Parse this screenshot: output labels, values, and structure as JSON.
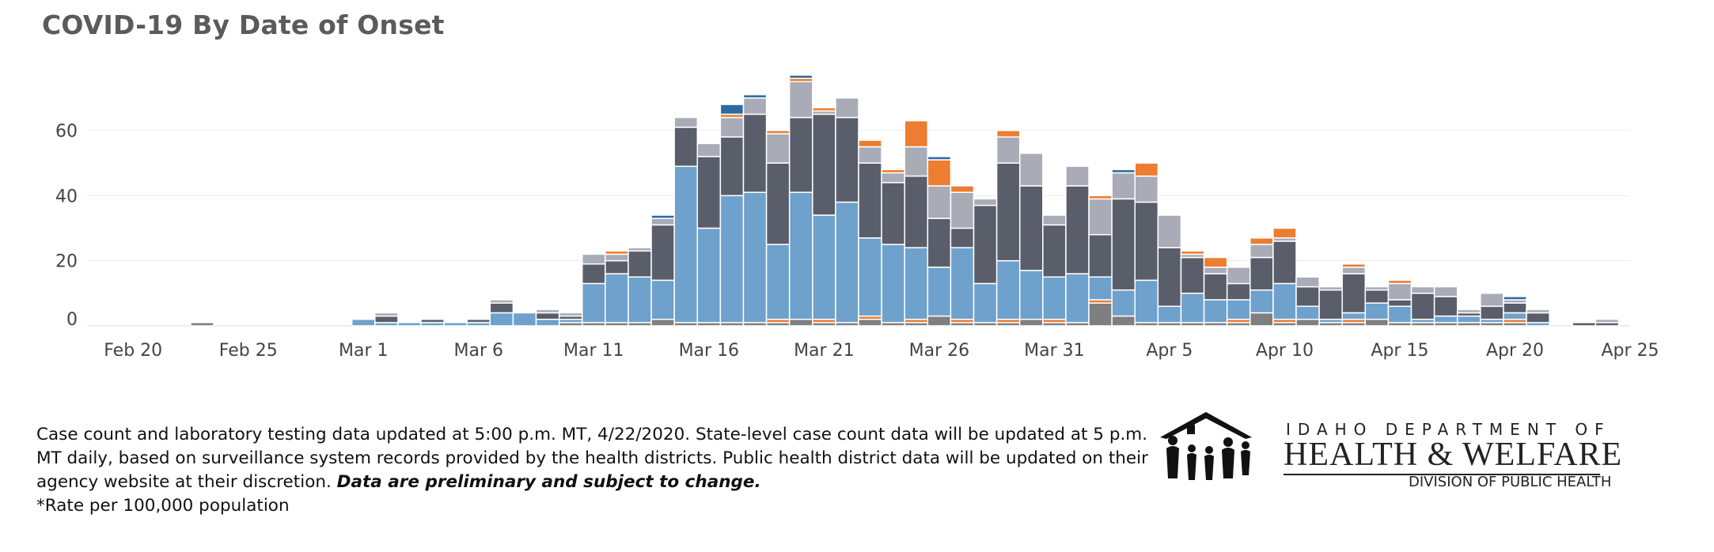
{
  "title": "COVID-19 By Date of Onset",
  "footnote": {
    "text": "Case count and laboratory testing data updated at 5:00 p.m. MT, 4/22/2020. State-level case count data will be updated at 5 p.m. MT daily, based on surveillance system records provided by the health districts. Public health district data will be updated on their agency website at their discretion.",
    "emphasis": "Data are preliminary and subject to change.",
    "rate_note": "*Rate per 100,000 population"
  },
  "logo": {
    "line1": "IDAHO DEPARTMENT OF",
    "line2": "HEALTH & WELFARE",
    "line3": "DIVISION OF PUBLIC HEALTH",
    "icon": "family-house-icon"
  },
  "chart_data": {
    "type": "bar",
    "stacked": true,
    "title": "COVID-19 By Date of Onset",
    "xlabel": "",
    "ylabel": "",
    "ylim": [
      0,
      75
    ],
    "grid": true,
    "x_start": "2020-02-18",
    "x_end": "2020-04-25",
    "x_ticks": [
      "2020-02-20",
      "2020-02-25",
      "2020-03-01",
      "2020-03-06",
      "2020-03-11",
      "2020-03-16",
      "2020-03-21",
      "2020-03-26",
      "2020-03-31",
      "2020-04-05",
      "2020-04-10",
      "2020-04-15",
      "2020-04-20",
      "2020-04-25"
    ],
    "x_tick_labels": [
      "Feb 20",
      "Feb 25",
      "Mar 1",
      "Mar 6",
      "Mar 11",
      "Mar 16",
      "Mar 21",
      "Mar 26",
      "Mar 31",
      "Apr 5",
      "Apr 10",
      "Apr 15",
      "Apr 20",
      "Apr 25"
    ],
    "y_ticks": [
      0,
      20,
      40,
      60
    ],
    "colors": [
      "#7f7f7f",
      "#ed7d31",
      "#6ea1cc",
      "#5a5e6a",
      "#a9acb6",
      "#2e6aa3"
    ],
    "dates": [
      "2020-02-20",
      "2020-02-21",
      "2020-02-22",
      "2020-02-23",
      "2020-02-24",
      "2020-02-25",
      "2020-02-26",
      "2020-02-27",
      "2020-02-28",
      "2020-02-29",
      "2020-03-01",
      "2020-03-02",
      "2020-03-03",
      "2020-03-04",
      "2020-03-05",
      "2020-03-06",
      "2020-03-07",
      "2020-03-08",
      "2020-03-09",
      "2020-03-10",
      "2020-03-11",
      "2020-03-12",
      "2020-03-13",
      "2020-03-14",
      "2020-03-15",
      "2020-03-16",
      "2020-03-17",
      "2020-03-18",
      "2020-03-19",
      "2020-03-20",
      "2020-03-21",
      "2020-03-22",
      "2020-03-23",
      "2020-03-24",
      "2020-03-25",
      "2020-03-26",
      "2020-03-27",
      "2020-03-28",
      "2020-03-29",
      "2020-03-30",
      "2020-03-31",
      "2020-04-01",
      "2020-04-02",
      "2020-04-03",
      "2020-04-04",
      "2020-04-05",
      "2020-04-06",
      "2020-04-07",
      "2020-04-08",
      "2020-04-09",
      "2020-04-10",
      "2020-04-11",
      "2020-04-12",
      "2020-04-13",
      "2020-04-14",
      "2020-04-15",
      "2020-04-16",
      "2020-04-17",
      "2020-04-18",
      "2020-04-19",
      "2020-04-20",
      "2020-04-21",
      "2020-04-22",
      "2020-04-23",
      "2020-04-24"
    ],
    "series": [
      {
        "values": [
          0,
          0,
          0,
          1,
          0,
          0,
          0,
          0,
          0,
          0,
          0,
          0,
          0,
          0,
          0,
          0,
          0,
          0,
          0,
          1,
          1,
          1,
          1,
          2,
          1,
          1,
          1,
          1,
          1,
          2,
          1,
          1,
          2,
          1,
          1,
          3,
          1,
          1,
          1,
          2,
          1,
          1,
          7,
          3,
          1,
          1,
          1,
          1,
          1,
          4,
          1,
          2,
          1,
          1,
          2,
          1,
          1,
          1,
          1,
          1,
          1,
          0,
          0,
          0,
          0
        ]
      },
      {
        "values": [
          0,
          0,
          0,
          0,
          0,
          0,
          0,
          0,
          0,
          0,
          0,
          0,
          0,
          0,
          0,
          0,
          0,
          0,
          0,
          0,
          0,
          0,
          0,
          0,
          0,
          0,
          0,
          0,
          1,
          0,
          1,
          0,
          1,
          0,
          1,
          0,
          1,
          0,
          1,
          0,
          1,
          0,
          1,
          0,
          0,
          0,
          0,
          0,
          1,
          0,
          1,
          0,
          0,
          1,
          0,
          0,
          0,
          0,
          0,
          0,
          1,
          0,
          0,
          0,
          0
        ]
      },
      {
        "values": [
          0,
          0,
          0,
          0,
          0,
          0,
          0,
          0,
          0,
          0,
          2,
          1,
          1,
          1,
          1,
          1,
          4,
          4,
          2,
          1,
          12,
          15,
          14,
          12,
          48,
          29,
          39,
          40,
          23,
          39,
          32,
          37,
          24,
          24,
          22,
          15,
          22,
          12,
          18,
          15,
          13,
          15,
          7,
          8,
          13,
          5,
          9,
          7,
          6,
          7,
          11,
          4,
          1,
          2,
          5,
          5,
          1,
          2,
          2,
          1,
          2,
          1,
          0,
          0,
          0
        ]
      },
      {
        "values": [
          0,
          0,
          0,
          0,
          0,
          0,
          0,
          0,
          0,
          0,
          0,
          2,
          0,
          1,
          0,
          1,
          3,
          0,
          2,
          1,
          6,
          4,
          8,
          17,
          12,
          22,
          18,
          24,
          25,
          23,
          31,
          26,
          23,
          19,
          22,
          15,
          6,
          24,
          30,
          26,
          16,
          27,
          13,
          28,
          24,
          18,
          11,
          8,
          5,
          10,
          13,
          6,
          9,
          12,
          4,
          2,
          8,
          6,
          1,
          4,
          3,
          3,
          0,
          1,
          1
        ]
      },
      {
        "values": [
          0,
          0,
          0,
          0,
          0,
          0,
          0,
          0,
          0,
          0,
          0,
          1,
          0,
          0,
          0,
          0,
          1,
          0,
          1,
          1,
          3,
          2,
          1,
          2,
          3,
          4,
          6,
          5,
          9,
          11,
          1,
          6,
          5,
          3,
          9,
          10,
          11,
          2,
          8,
          10,
          3,
          6,
          11,
          8,
          8,
          10,
          1,
          2,
          5,
          4,
          1,
          3,
          1,
          2,
          1,
          5,
          2,
          3,
          1,
          4,
          1,
          1,
          0,
          0,
          1
        ]
      },
      {
        "values": [
          0,
          0,
          0,
          0,
          0,
          0,
          0,
          0,
          0,
          0,
          0,
          0,
          0,
          0,
          0,
          0,
          0,
          0,
          0,
          0,
          0,
          0,
          0,
          1,
          0,
          0,
          3,
          1,
          0,
          1,
          0,
          0,
          0,
          0,
          0,
          1,
          0,
          0,
          0,
          0,
          0,
          0,
          0,
          1,
          0,
          0,
          0,
          0,
          0,
          0,
          0,
          0,
          0,
          0,
          0,
          0,
          0,
          0,
          0,
          0,
          1,
          0,
          0,
          0,
          0
        ]
      }
    ],
    "extra_orange_top": [
      0,
      0,
      0,
      0,
      0,
      0,
      0,
      0,
      0,
      0,
      0,
      0,
      0,
      0,
      0,
      0,
      0,
      0,
      0,
      0,
      0,
      1,
      0,
      0,
      0,
      0,
      1,
      0,
      1,
      1,
      1,
      0,
      2,
      1,
      8,
      8,
      2,
      0,
      2,
      0,
      0,
      0,
      1,
      0,
      4,
      0,
      1,
      3,
      0,
      2,
      3,
      0,
      0,
      1,
      0,
      1,
      0,
      0,
      0,
      0,
      0,
      0,
      0,
      0,
      0
    ]
  }
}
